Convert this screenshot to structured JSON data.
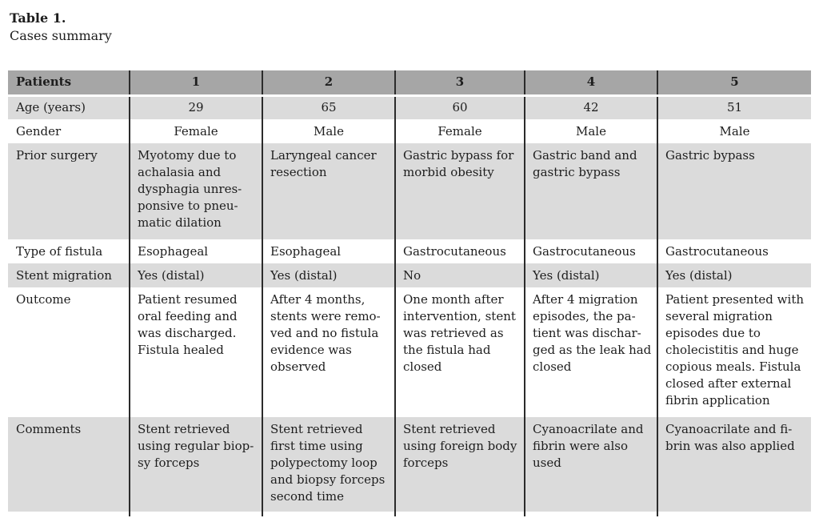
{
  "colors": {
    "header_bg": "#a6a6a6",
    "shade": "#dbdbdb",
    "line": "#2b2b2b",
    "text": "#1d1d1d"
  },
  "caption": {
    "label": "Table 1.",
    "subtitle": "Cases summary"
  },
  "table": {
    "header": {
      "label": "Patients",
      "columns": [
        "1",
        "2",
        "3",
        "4",
        "5"
      ]
    },
    "rows": [
      {
        "label": "Age (years)",
        "cells": [
          "29",
          "65",
          "60",
          "42",
          "51"
        ]
      },
      {
        "label": "Gender",
        "cells": [
          "Female",
          "Male",
          "Female",
          "Male",
          "Male"
        ]
      },
      {
        "label": "Prior surgery",
        "cells": [
          "Myotomy due to\nachalasia and\ndysphagia unres-\nponsive to pneu-\nmatic dilation",
          "Laryngeal cancer\nresection",
          "Gastric bypass for\nmorbid obesity",
          "Gastric band and\ngastric bypass",
          "Gastric bypass"
        ]
      },
      {
        "label": "Type of fistula",
        "cells": [
          "Esophageal",
          "Esophageal",
          "Gastrocutaneous",
          "Gastrocutaneous",
          "Gastrocutaneous"
        ]
      },
      {
        "label": "Stent migration",
        "cells": [
          "Yes (distal)",
          "Yes (distal)",
          "No",
          "Yes (distal)",
          "Yes (distal)"
        ]
      },
      {
        "label": "Outcome",
        "cells": [
          "Patient resumed\noral feeding and\nwas discharged.\nFistula healed",
          "After 4 months,\nstents were remo-\nved and no fistula\nevidence was\nobserved",
          "One month after\nintervention, stent\nwas retrieved as\nthe fistula had\nclosed",
          "After 4 migration\nepisodes, the pa-\ntient was dischar-\nged as the leak had\nclosed",
          "Patient presented with\nseveral migration\nepisodes due to\ncholecistitis and huge\ncopious meals. Fistula\nclosed after external\nfibrin application"
        ]
      },
      {
        "label": "Comments",
        "cells": [
          "Stent retrieved\nusing regular biop-\nsy forceps",
          "Stent retrieved\nfirst time using\npolypectomy loop\nand biopsy forceps\nsecond time",
          "Stent retrieved\nusing foreign body\nforceps",
          "Cyanoacrilate and\nfibrin were also\nused",
          "Cyanoacrilate and fi-\nbrin was also applied"
        ]
      }
    ]
  }
}
